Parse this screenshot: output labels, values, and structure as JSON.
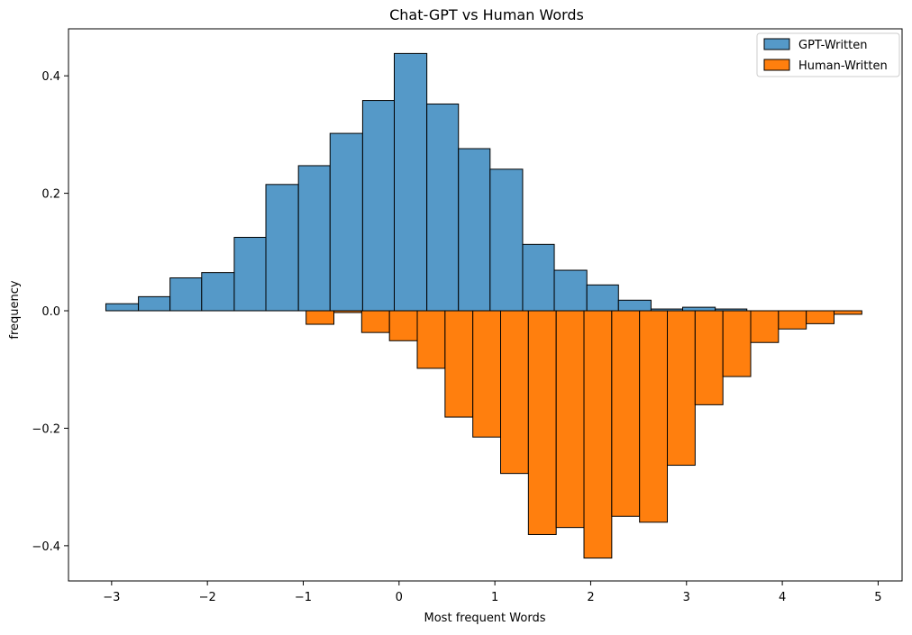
{
  "chart_data": {
    "type": "histogram",
    "title": "Chat-GPT vs Human Words",
    "xlabel": "Most frequent Words",
    "ylabel": "frequency",
    "xlim": [
      -3.45,
      5.25
    ],
    "ylim": [
      -0.46,
      0.48
    ],
    "xticks": [
      {
        "value": -3,
        "label": "−3"
      },
      {
        "value": -2,
        "label": "−2"
      },
      {
        "value": -1,
        "label": "−1"
      },
      {
        "value": 0,
        "label": "0"
      },
      {
        "value": 1,
        "label": "1"
      },
      {
        "value": 2,
        "label": "2"
      },
      {
        "value": 3,
        "label": "3"
      },
      {
        "value": 4,
        "label": "4"
      },
      {
        "value": 5,
        "label": "5"
      }
    ],
    "yticks": [
      {
        "value": -0.4,
        "label": "−0.4"
      },
      {
        "value": -0.2,
        "label": "−0.2"
      },
      {
        "value": 0.0,
        "label": "0.0"
      },
      {
        "value": 0.2,
        "label": "0.2"
      },
      {
        "value": 0.4,
        "label": "0.4"
      }
    ],
    "grid": false,
    "legend_position": "top-right",
    "series": [
      {
        "name": "GPT-Written",
        "color": "#5599c8",
        "bins": [
          {
            "x0": -3.06,
            "x1": -2.72,
            "value": 0.012
          },
          {
            "x0": -2.72,
            "x1": -2.39,
            "value": 0.024
          },
          {
            "x0": -2.39,
            "x1": -2.06,
            "value": 0.056
          },
          {
            "x0": -2.06,
            "x1": -1.72,
            "value": 0.065
          },
          {
            "x0": -1.72,
            "x1": -1.39,
            "value": 0.125
          },
          {
            "x0": -1.39,
            "x1": -1.05,
            "value": 0.215
          },
          {
            "x0": -1.05,
            "x1": -0.72,
            "value": 0.247
          },
          {
            "x0": -0.72,
            "x1": -0.38,
            "value": 0.302
          },
          {
            "x0": -0.38,
            "x1": -0.05,
            "value": 0.358
          },
          {
            "x0": -0.05,
            "x1": 0.29,
            "value": 0.438
          },
          {
            "x0": 0.29,
            "x1": 0.62,
            "value": 0.352
          },
          {
            "x0": 0.62,
            "x1": 0.95,
            "value": 0.276
          },
          {
            "x0": 0.95,
            "x1": 1.29,
            "value": 0.241
          },
          {
            "x0": 1.29,
            "x1": 1.62,
            "value": 0.113
          },
          {
            "x0": 1.62,
            "x1": 1.96,
            "value": 0.069
          },
          {
            "x0": 1.96,
            "x1": 2.29,
            "value": 0.044
          },
          {
            "x0": 2.29,
            "x1": 2.63,
            "value": 0.018
          },
          {
            "x0": 2.63,
            "x1": 2.96,
            "value": 0.003
          },
          {
            "x0": 2.96,
            "x1": 3.3,
            "value": 0.006
          },
          {
            "x0": 3.3,
            "x1": 3.63,
            "value": 0.003
          }
        ]
      },
      {
        "name": "Human-Written",
        "color": "#ff7f0e",
        "bins": [
          {
            "x0": -0.97,
            "x1": -0.68,
            "value": -0.023
          },
          {
            "x0": -0.68,
            "x1": -0.39,
            "value": -0.003
          },
          {
            "x0": -0.39,
            "x1": -0.1,
            "value": -0.037
          },
          {
            "x0": -0.1,
            "x1": 0.19,
            "value": -0.051
          },
          {
            "x0": 0.19,
            "x1": 0.48,
            "value": -0.098
          },
          {
            "x0": 0.48,
            "x1": 0.77,
            "value": -0.181
          },
          {
            "x0": 0.77,
            "x1": 1.06,
            "value": -0.215
          },
          {
            "x0": 1.06,
            "x1": 1.35,
            "value": -0.277
          },
          {
            "x0": 1.35,
            "x1": 1.64,
            "value": -0.381
          },
          {
            "x0": 1.64,
            "x1": 1.93,
            "value": -0.369
          },
          {
            "x0": 1.93,
            "x1": 2.22,
            "value": -0.421
          },
          {
            "x0": 2.22,
            "x1": 2.51,
            "value": -0.35
          },
          {
            "x0": 2.51,
            "x1": 2.8,
            "value": -0.36
          },
          {
            "x0": 2.8,
            "x1": 3.09,
            "value": -0.263
          },
          {
            "x0": 3.09,
            "x1": 3.38,
            "value": -0.16
          },
          {
            "x0": 3.38,
            "x1": 3.67,
            "value": -0.112
          },
          {
            "x0": 3.67,
            "x1": 3.96,
            "value": -0.054
          },
          {
            "x0": 3.96,
            "x1": 4.25,
            "value": -0.031
          },
          {
            "x0": 4.25,
            "x1": 4.54,
            "value": -0.022
          },
          {
            "x0": 4.54,
            "x1": 4.83,
            "value": -0.006
          }
        ]
      }
    ]
  }
}
